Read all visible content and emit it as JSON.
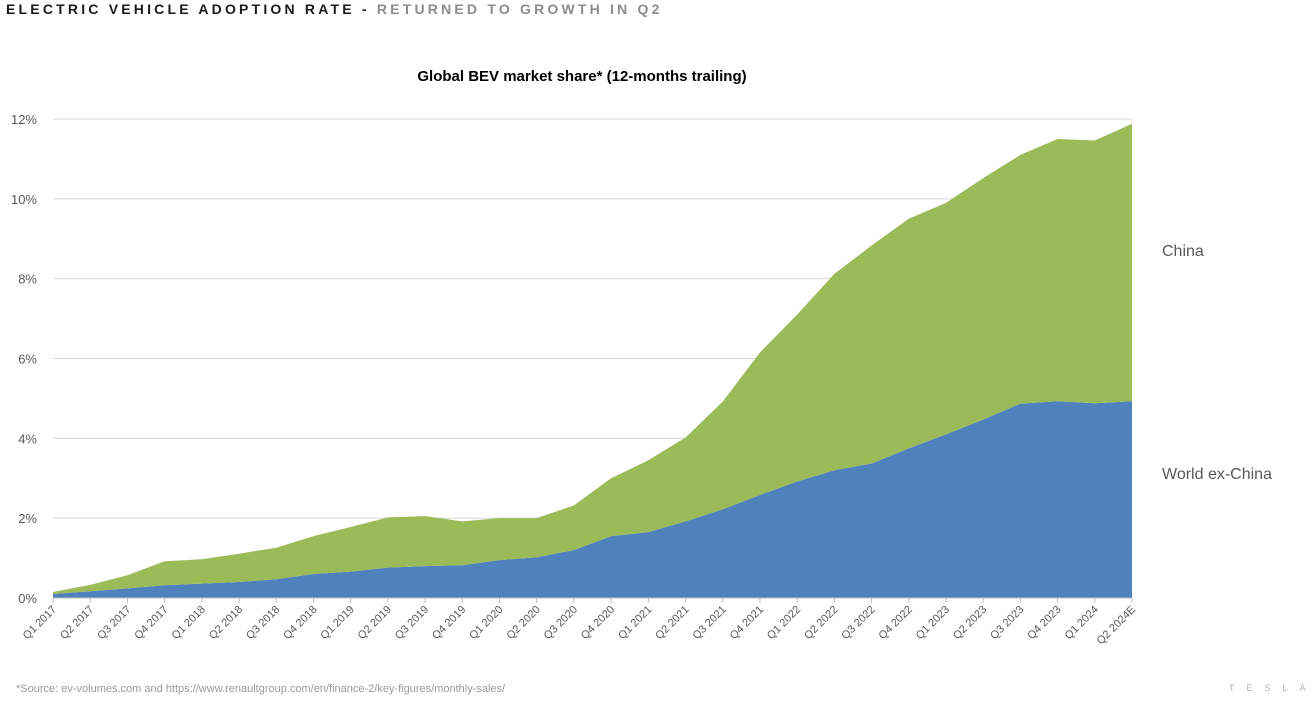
{
  "header": {
    "main": "ELECTRIC VEHICLE ADOPTION RATE",
    "separator": "-",
    "sub": "RETURNED TO GROWTH IN Q2"
  },
  "footer": {
    "source": "*Source: ev-volumes.com and https://www.renaultgroup.com/en/finance-2/key-figures/monthly-sales/",
    "brand": "TESLA"
  },
  "colors": {
    "world_ex_china": "#4f81bd",
    "china": "#9bbb59",
    "grid": "#d9d9d9",
    "axis": "#595959"
  },
  "chart_data": {
    "type": "area",
    "stacked": true,
    "title": "Global BEV market share* (12-months trailing)",
    "xlabel": "",
    "ylabel": "",
    "ylim": [
      0,
      12
    ],
    "yticks": [
      "0%",
      "2%",
      "4%",
      "6%",
      "8%",
      "10%",
      "12%"
    ],
    "grid": true,
    "legend": "right, inline labels",
    "categories": [
      "Q1 2017",
      "Q2 2017",
      "Q3 2017",
      "Q4 2017",
      "Q1 2018",
      "Q2 2018",
      "Q3 2018",
      "Q4 2018",
      "Q1 2019",
      "Q2 2019",
      "Q3 2019",
      "Q4 2019",
      "Q1 2020",
      "Q2 2020",
      "Q3 2020",
      "Q4 2020",
      "Q1 2021",
      "Q2 2021",
      "Q3 2021",
      "Q4 2021",
      "Q1 2022",
      "Q2 2022",
      "Q3 2022",
      "Q4 2022",
      "Q1 2023",
      "Q2 2023",
      "Q3 2023",
      "Q4 2023",
      "Q1 2024",
      "Q2 2024E"
    ],
    "series": [
      {
        "name": "World ex-China",
        "color": "#4f81bd",
        "values": [
          0.1,
          0.17,
          0.24,
          0.32,
          0.36,
          0.4,
          0.47,
          0.6,
          0.66,
          0.76,
          0.8,
          0.82,
          0.95,
          1.02,
          1.2,
          1.55,
          1.65,
          1.92,
          2.22,
          2.58,
          2.92,
          3.2,
          3.37,
          3.75,
          4.1,
          4.47,
          4.87,
          4.93,
          4.88,
          4.93
        ]
      },
      {
        "name": "China",
        "color": "#9bbb59",
        "values": [
          0.05,
          0.16,
          0.33,
          0.6,
          0.61,
          0.71,
          0.79,
          0.95,
          1.12,
          1.26,
          1.25,
          1.1,
          1.05,
          0.98,
          1.12,
          1.45,
          1.8,
          2.1,
          2.7,
          3.57,
          4.18,
          4.92,
          5.46,
          5.75,
          5.8,
          6.05,
          6.23,
          6.57,
          6.58,
          6.95
        ]
      }
    ]
  }
}
